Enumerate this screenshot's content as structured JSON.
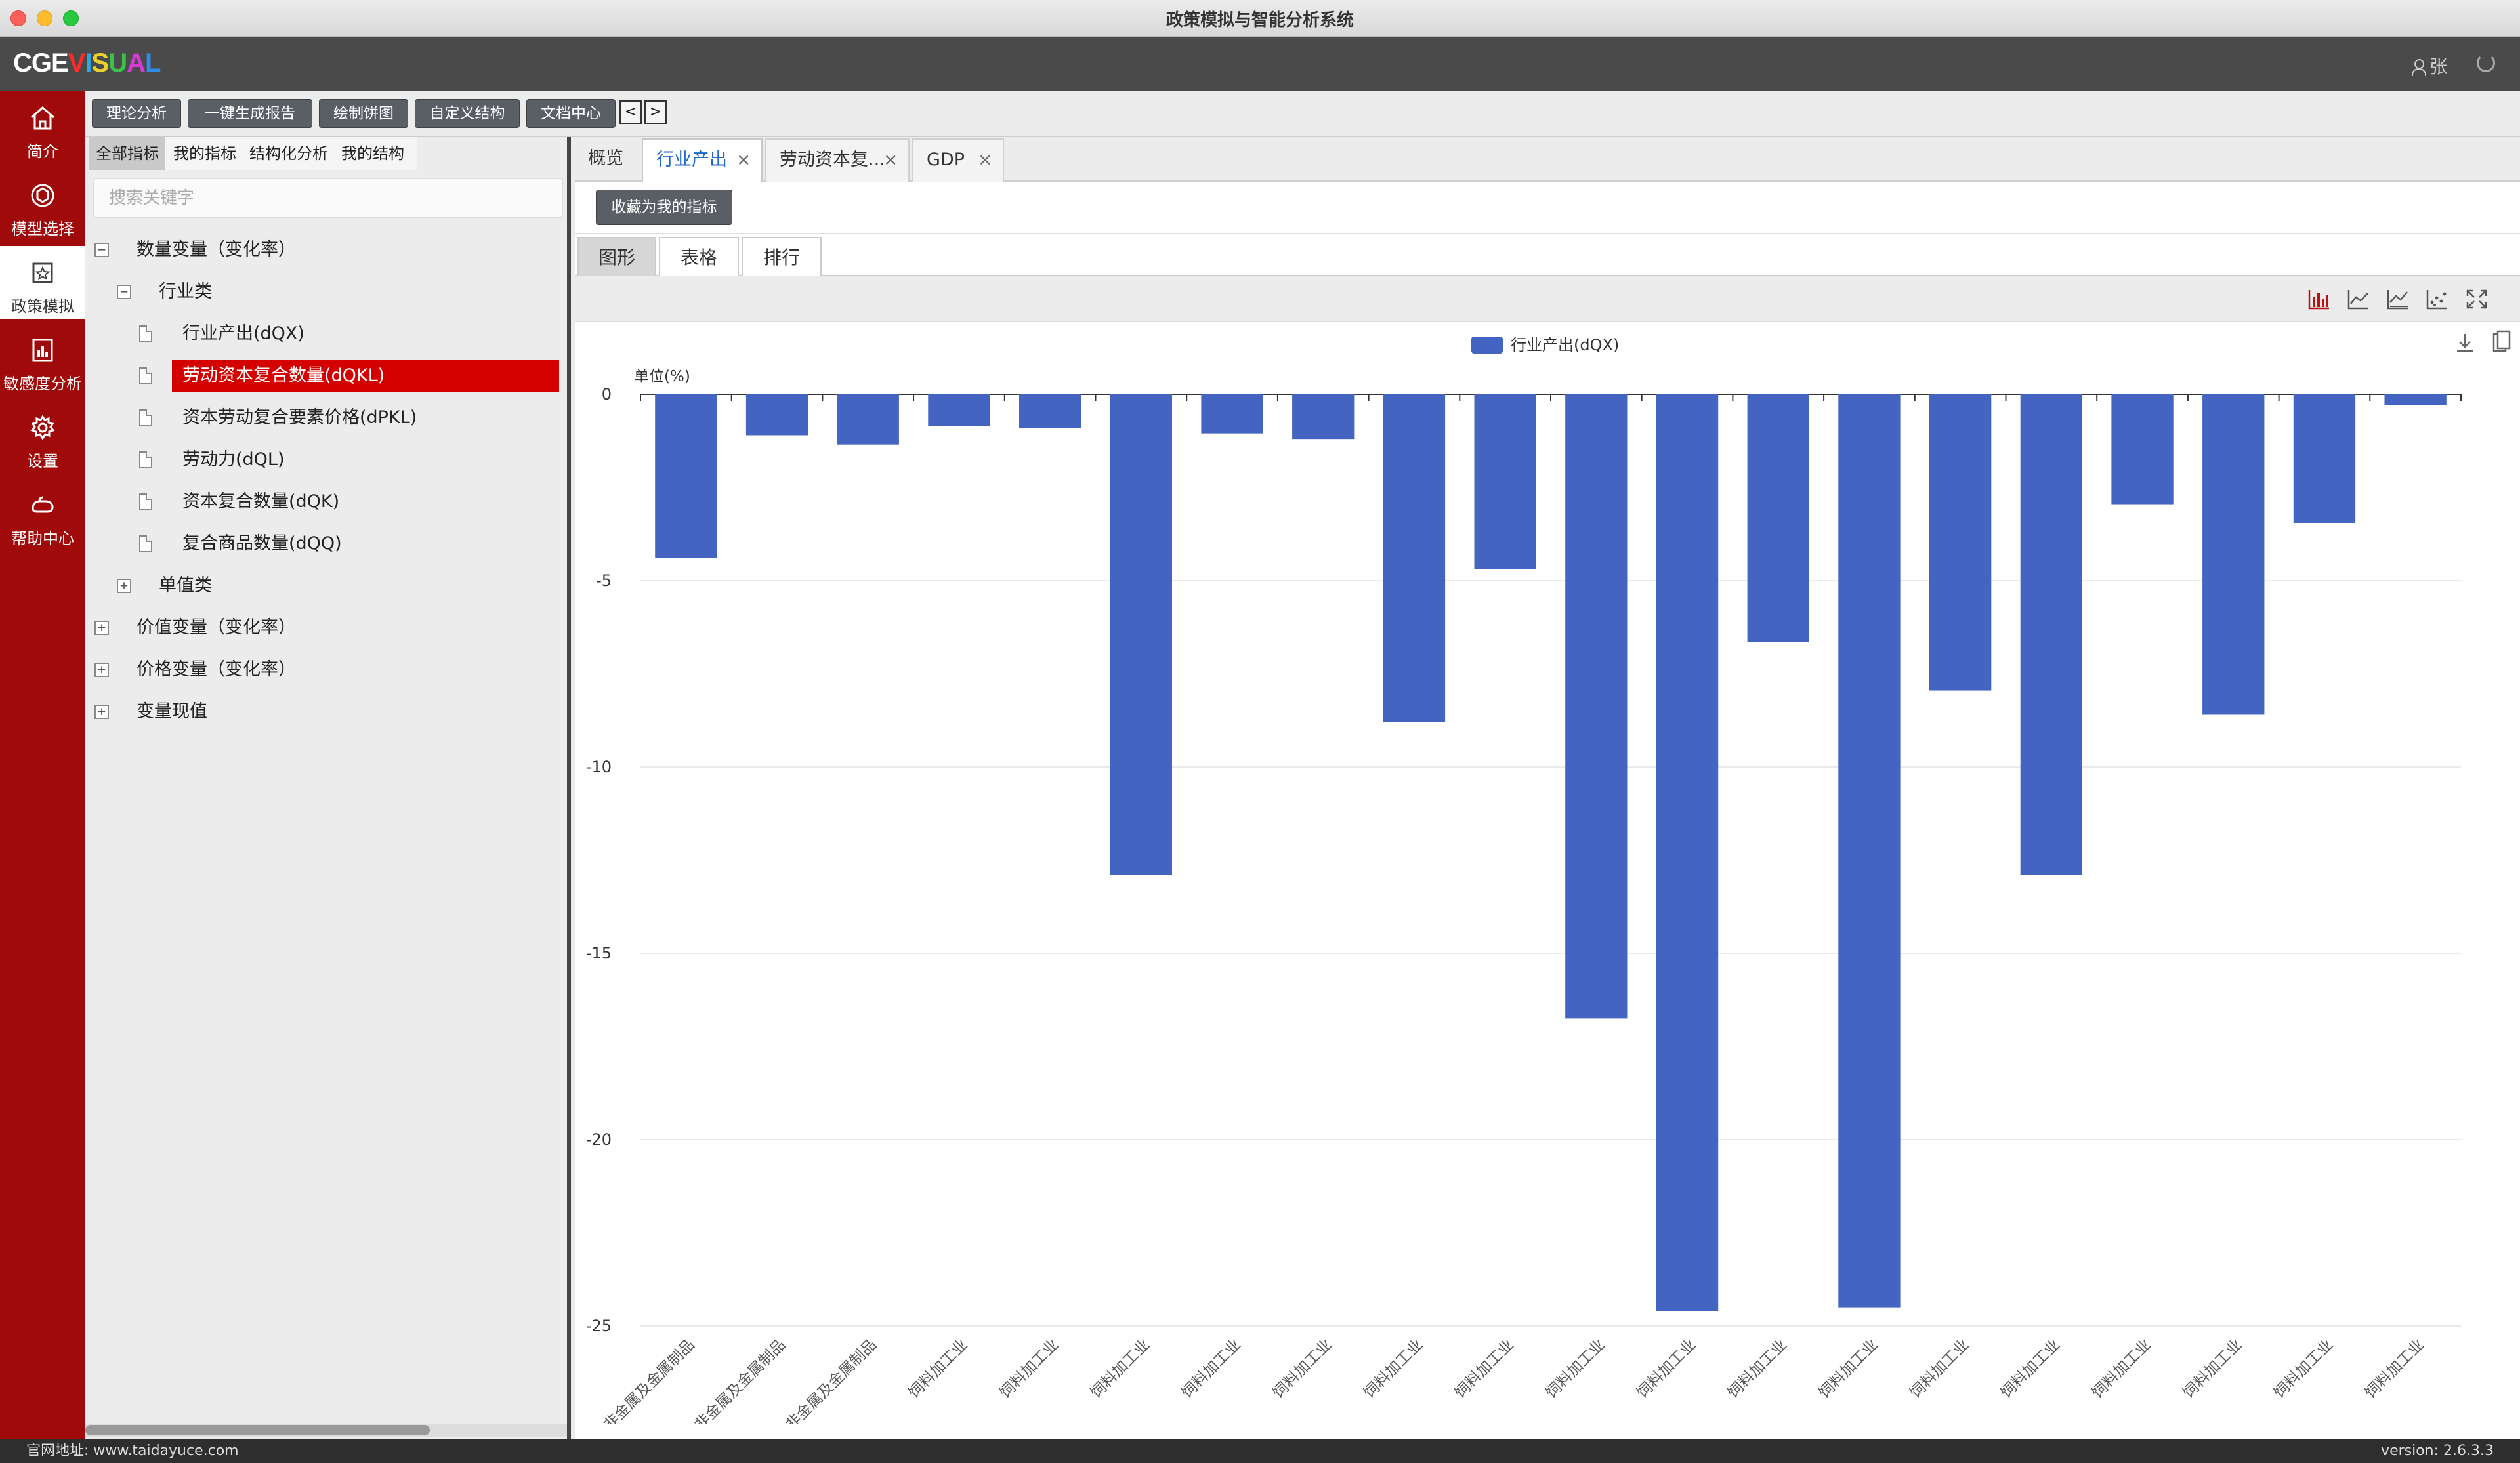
{
  "window": {
    "title": "政策模拟与智能分析系统"
  },
  "header": {
    "logo": {
      "part1": "CGE",
      "part2": "V",
      "letters": [
        "I",
        "S",
        "U",
        "A",
        "L"
      ]
    },
    "user": "张"
  },
  "nav": [
    {
      "label": "简介",
      "icon": "home-icon"
    },
    {
      "label": "模型选择",
      "icon": "model-icon"
    },
    {
      "label": "政策模拟",
      "icon": "policy-icon",
      "active": true
    },
    {
      "label": "敏感度分析",
      "icon": "sensitivity-icon"
    },
    {
      "label": "设置",
      "icon": "gear-icon"
    },
    {
      "label": "帮助中心",
      "icon": "help-icon"
    }
  ],
  "toolbar": {
    "buttons": [
      "理论分析",
      "一键生成报告",
      "绘制饼图",
      "自定义结构",
      "文档中心"
    ],
    "prev": "<",
    "next": ">"
  },
  "left_panel": {
    "tabs": [
      "全部指标",
      "我的指标",
      "结构化分析",
      "我的结构"
    ],
    "search_placeholder": "搜索关键字",
    "tree": {
      "quantity": "数量变量（变化率）",
      "industry": "行业类",
      "items": [
        "行业产出(dQX)",
        "劳动资本复合数量(dQKL)",
        "资本劳动复合要素价格(dPKL)",
        "劳动力(dQL)",
        "资本复合数量(dQK)",
        "复合商品数量(dQQ)"
      ],
      "single": "单值类",
      "value": "价值变量（变化率）",
      "price": "价格变量（变化率）",
      "current": "变量现值"
    }
  },
  "doc_tabs": [
    "概览",
    "行业产出",
    "劳动资本复...",
    "GDP"
  ],
  "favorite_button": "收藏为我的指标",
  "view_tabs": [
    "图形",
    "表格",
    "排行"
  ],
  "chart_data": {
    "type": "bar",
    "legend": "行业产出(dQX)",
    "ylabel": "单位(%)",
    "ylim": [
      -25,
      0
    ],
    "yticks": [
      0,
      -5,
      -10,
      -15,
      -20,
      -25
    ],
    "color": "#4464c2",
    "categories": [
      "非金属及金属制品",
      "非金属及金属制品",
      "非金属及金属制品",
      "饲料加工业",
      "饲料加工业",
      "饲料加工业",
      "饲料加工业",
      "饲料加工业",
      "饲料加工业",
      "饲料加工业",
      "饲料加工业",
      "饲料加工业",
      "饲料加工业",
      "饲料加工业",
      "饲料加工业",
      "饲料加工业",
      "饲料加工业",
      "饲料加工业",
      "饲料加工业",
      "饲料加工业"
    ],
    "values": [
      -4.4,
      -1.1,
      -1.35,
      -0.85,
      -0.9,
      -12.9,
      -1.05,
      -1.2,
      -8.8,
      -4.7,
      -16.75,
      -24.6,
      -6.65,
      -24.5,
      -7.95,
      -12.9,
      -2.95,
      -8.6,
      -3.45,
      -0.3
    ]
  },
  "status": {
    "website": "官网地址: www.taidayuce.com",
    "version": "version: 2.6.3.3"
  }
}
